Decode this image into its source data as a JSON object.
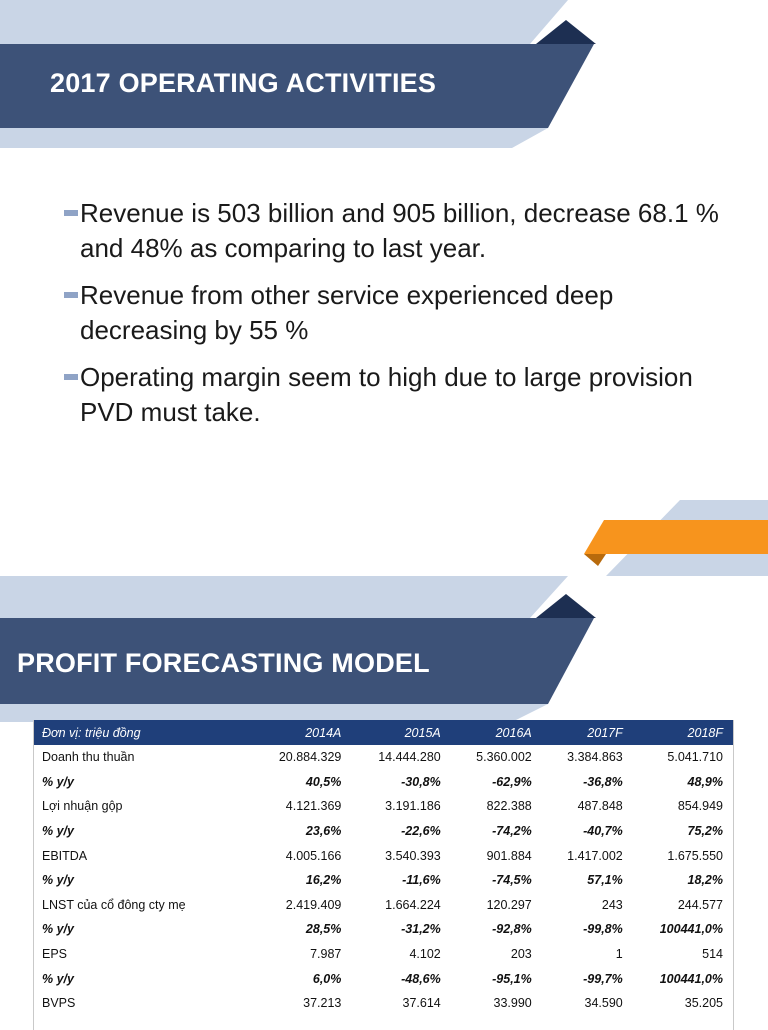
{
  "slide1": {
    "title": "2017 OPERATING ACTIVITIES",
    "bullets": [
      "Revenue is 503 billion and 905 billion, decrease 68.1 % and 48% as comparing to last year.",
      "Revenue from other service experienced deep decreasing by 55 %",
      "Operating margin seem to high due to large provision PVD must take."
    ]
  },
  "slide2": {
    "title": "PROFIT FORECASTING MODEL"
  },
  "table": {
    "headers": [
      "Đơn vị: triệu đồng",
      "2014A",
      "2015A",
      "2016A",
      "2017F",
      "2018F"
    ],
    "rows": [
      {
        "label": "Doanh thu thuần",
        "values": [
          "20.884.329",
          "14.444.280",
          "5.360.002",
          "3.384.863",
          "5.041.710"
        ],
        "pct": false
      },
      {
        "label": "% y/y",
        "values": [
          "40,5%",
          "-30,8%",
          "-62,9%",
          "-36,8%",
          "48,9%"
        ],
        "pct": true
      },
      {
        "label": "Lợi nhuận gộp",
        "values": [
          "4.121.369",
          "3.191.186",
          "822.388",
          "487.848",
          "854.949"
        ],
        "pct": false
      },
      {
        "label": "% y/y",
        "values": [
          "23,6%",
          "-22,6%",
          "-74,2%",
          "-40,7%",
          "75,2%"
        ],
        "pct": true
      },
      {
        "label": "EBITDA",
        "values": [
          "4.005.166",
          "3.540.393",
          "901.884",
          "1.417.002",
          "1.675.550"
        ],
        "pct": false
      },
      {
        "label": "% y/y",
        "values": [
          "16,2%",
          "-11,6%",
          "-74,5%",
          "57,1%",
          "18,2%"
        ],
        "pct": true
      },
      {
        "label": "LNST của cổ đông cty mẹ",
        "values": [
          "2.419.409",
          "1.664.224",
          "120.297",
          "243",
          "244.577"
        ],
        "pct": false
      },
      {
        "label": "% y/y",
        "values": [
          "28,5%",
          "-31,2%",
          "-92,8%",
          "-99,8%",
          "100441,0%"
        ],
        "pct": true
      },
      {
        "label": "EPS",
        "values": [
          "7.987",
          "4.102",
          "203",
          "1",
          "514"
        ],
        "pct": false
      },
      {
        "label": "% y/y",
        "values": [
          "6,0%",
          "-48,6%",
          "-95,1%",
          "-99,7%",
          "100441,0%"
        ],
        "pct": true
      },
      {
        "label": "BVPS",
        "values": [
          "37.213",
          "37.614",
          "33.990",
          "34.590",
          "35.205"
        ],
        "pct": false
      }
    ]
  },
  "colors": {
    "banner_dark": "#3d5278",
    "banner_light": "#c9d5e6",
    "accent_orange": "#f7941d",
    "table_header": "#1f3f7a"
  }
}
